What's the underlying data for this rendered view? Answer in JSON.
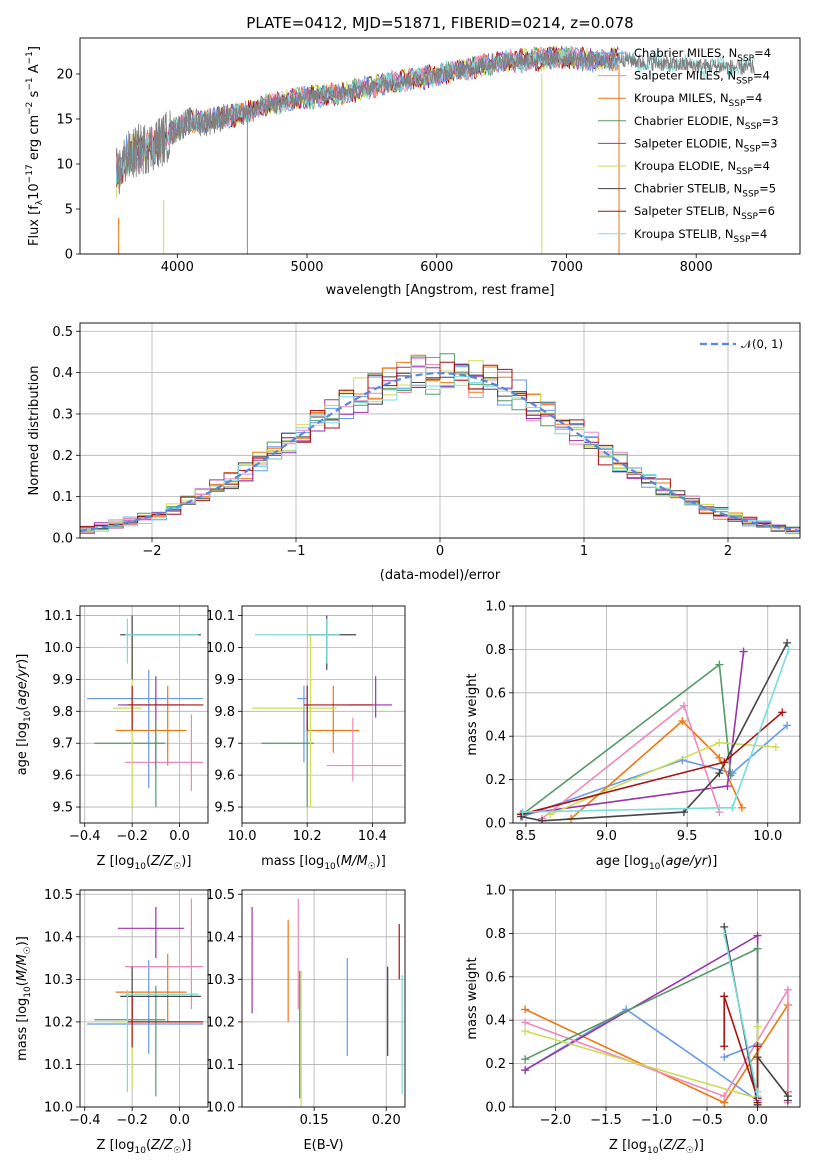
{
  "figure_title": "PLATE=0412, MJD=51871, FIBERID=0214, z=0.078",
  "colors": [
    "#6699ee",
    "#ee7711",
    "#9933aa",
    "#ee88bb",
    "#559966",
    "#ccdd55",
    "#444444",
    "#aa1111",
    "#77dddd"
  ],
  "chart_data": [
    {
      "type": "line",
      "xlabel": "wavelength [Angstrom, rest frame]",
      "ylabel": "Flux [fλ10^{-17} erg cm^{-2} s^{-1} A^{-1}]",
      "xlim": [
        3250,
        8800
      ],
      "ylim": [
        0,
        24
      ],
      "xticks": [
        "4000",
        "5000",
        "6000",
        "7000",
        "8000"
      ],
      "yticks": [
        "0",
        "5",
        "10",
        "15",
        "20"
      ],
      "legend_position": "upper right",
      "data_envelope": {
        "x": [
          3550,
          3600,
          3700,
          3800,
          3900,
          4000,
          4100,
          4200,
          4300,
          4500,
          4700,
          4900,
          5100,
          5300,
          5500,
          5700,
          5900,
          6100,
          6300,
          6500,
          6700,
          6900,
          7100,
          7300,
          7400,
          7600,
          7800,
          8000,
          8200,
          8400
        ],
        "y": [
          9.0,
          10.5,
          11.5,
          12.0,
          12.8,
          14.0,
          14.8,
          14.6,
          15.0,
          15.6,
          16.6,
          17.2,
          17.6,
          17.9,
          18.6,
          19.2,
          19.6,
          20.2,
          20.8,
          21.5,
          21.5,
          21.8,
          21.7,
          21.4,
          21.8,
          21.3,
          21.1,
          20.9,
          20.8,
          20.7
        ]
      },
      "series": [
        {
          "name": "Chabrier MILES, N_SSP=4",
          "color": "#6699ee"
        },
        {
          "name": "Salpeter MILES, N_SSP=4",
          "color": "#ee88bb"
        },
        {
          "name": "Kroupa MILES, N_SSP=4",
          "color": "#ee7711"
        },
        {
          "name": "Chabrier ELODIE, N_SSP=3",
          "color": "#559966"
        },
        {
          "name": "Salpeter ELODIE, N_SSP=3",
          "color": "#9933aa"
        },
        {
          "name": "Kroupa ELODIE, N_SSP=4",
          "color": "#ccdd55"
        },
        {
          "name": "Chabrier STELIB, N_SSP=5",
          "color": "#444444"
        },
        {
          "name": "Salpeter STELIB, N_SSP=6",
          "color": "#aa1111"
        },
        {
          "name": "Kroupa STELIB, N_SSP=4",
          "color": "#77dddd"
        }
      ]
    },
    {
      "type": "line",
      "xlabel": "(data-model)/error",
      "ylabel": "Normed distribution",
      "xlim": [
        -2.5,
        2.5
      ],
      "ylim": [
        0,
        0.52
      ],
      "xticks": [
        "−2",
        "−1",
        "0",
        "1",
        "2"
      ],
      "yticks": [
        "0.0",
        "0.1",
        "0.2",
        "0.3",
        "0.4",
        "0.5"
      ],
      "grid": true,
      "legend_position": "upper right",
      "reference": {
        "name": "𝒩(0, 1)",
        "color": "#5588dd",
        "style": "dashed"
      },
      "bin_width": 0.1,
      "bins_start": -2.5,
      "series_colors": [
        "#6699ee",
        "#ee88bb",
        "#ee7711",
        "#559966",
        "#9933aa",
        "#ccdd55",
        "#444444",
        "#aa1111",
        "#77dddd"
      ]
    },
    {
      "type": "scatter",
      "xlabel": "Z [log10(Z/Z☉)]",
      "ylabel": "age [log10(age/yr)]",
      "xlim": [
        -0.42,
        0.12
      ],
      "ylim": [
        9.45,
        10.13
      ],
      "xticks": [
        "−0.4",
        "−0.2",
        "0.0"
      ],
      "yticks": [
        "9.5",
        "9.6",
        "9.7",
        "9.8",
        "9.9",
        "10.0",
        "10.1"
      ],
      "grid": true,
      "points": [
        {
          "color": "#6699ee",
          "x": -0.13,
          "y": 9.84,
          "xerr": [
            0.26,
            0.23
          ],
          "yerr": [
            0.28,
            0.09
          ]
        },
        {
          "color": "#ee7711",
          "x": -0.05,
          "y": 9.74,
          "xerr": [
            0.22,
            0.08
          ],
          "yerr": [
            0.11,
            0.14
          ]
        },
        {
          "color": "#9933aa",
          "x": -0.1,
          "y": 9.82,
          "xerr": [
            0.16,
            0.12
          ],
          "yerr": [
            0.2,
            0.09
          ]
        },
        {
          "color": "#ee88bb",
          "x": 0.05,
          "y": 9.64,
          "xerr": [
            0.28,
            0.05
          ],
          "yerr": [
            0.09,
            0.15
          ]
        },
        {
          "color": "#559966",
          "x": -0.1,
          "y": 9.7,
          "xerr": [
            0.26,
            0.04
          ],
          "yerr": [
            0.2,
            0.07
          ]
        },
        {
          "color": "#ccdd55",
          "x": -0.2,
          "y": 9.81,
          "xerr": [
            0.08,
            0.04
          ],
          "yerr": [
            0.31,
            0.23
          ]
        },
        {
          "color": "#444444",
          "x": -0.2,
          "y": 10.04,
          "xerr": [
            0.05,
            0.29
          ],
          "yerr": [
            0.14,
            0.06
          ]
        },
        {
          "color": "#aa1111",
          "x": -0.2,
          "y": 9.82,
          "xerr": [
            0.02,
            0.3
          ],
          "yerr": [
            0.08,
            0.06
          ]
        },
        {
          "color": "#77dddd",
          "x": -0.22,
          "y": 10.04,
          "xerr": [
            0.01,
            0.3
          ],
          "yerr": [
            0.09,
            0.05
          ]
        }
      ]
    },
    {
      "type": "scatter",
      "xlabel": "mass [log10(M/M☉)]",
      "ylabel": "",
      "xlim": [
        10.0,
        10.5
      ],
      "ylim": [
        9.45,
        10.13
      ],
      "xticks": [
        "10.0",
        "10.2",
        "10.4"
      ],
      "yticks": [
        "9.5",
        "9.6",
        "9.7",
        "9.8",
        "9.9",
        "10.0",
        "10.1"
      ],
      "grid": true,
      "points": [
        {
          "color": "#6699ee",
          "x": 10.19,
          "y": 9.84,
          "xerr": [
            0.02,
            0.01
          ],
          "yerr": [
            0.2,
            0.04
          ]
        },
        {
          "color": "#ee7711",
          "x": 10.28,
          "y": 9.74,
          "xerr": [
            0.08,
            0.08
          ],
          "yerr": [
            0.07,
            0.14
          ]
        },
        {
          "color": "#9933aa",
          "x": 10.41,
          "y": 9.82,
          "xerr": [
            0.08,
            0.05
          ],
          "yerr": [
            0.04,
            0.09
          ]
        },
        {
          "color": "#ee88bb",
          "x": 10.34,
          "y": 9.63,
          "xerr": [
            0.08,
            0.15
          ],
          "yerr": [
            0.05,
            0.15
          ]
        },
        {
          "color": "#559966",
          "x": 10.2,
          "y": 9.7,
          "xerr": [
            0.14,
            0.02
          ],
          "yerr": [
            0.2,
            0.07
          ]
        },
        {
          "color": "#ccdd55",
          "x": 10.21,
          "y": 9.81,
          "xerr": [
            0.18,
            0.08
          ],
          "yerr": [
            0.31,
            0.23
          ]
        },
        {
          "color": "#444444",
          "x": 10.26,
          "y": 10.04,
          "xerr": [
            0.06,
            0.09
          ],
          "yerr": [
            0.11,
            0.06
          ]
        },
        {
          "color": "#aa1111",
          "x": 10.2,
          "y": 9.82,
          "xerr": [
            0.01,
            0.2
          ],
          "yerr": [
            0.08,
            0.06
          ]
        },
        {
          "color": "#77dddd",
          "x": 10.26,
          "y": 10.04,
          "xerr": [
            0.22,
            0.04
          ],
          "yerr": [
            0.09,
            0.05
          ]
        }
      ]
    },
    {
      "type": "line",
      "xlabel": "age [log10(age/yr)]",
      "ylabel": "mass weight",
      "xlim": [
        8.42,
        10.2
      ],
      "ylim": [
        0,
        1.0
      ],
      "xticks": [
        "8.5",
        "9.0",
        "9.5",
        "10.0"
      ],
      "yticks": [
        "0.0",
        "0.2",
        "0.4",
        "0.6",
        "0.8",
        "1.0"
      ],
      "grid": true,
      "series": [
        {
          "color": "#6699ee",
          "x": [
            8.48,
            9.47,
            9.78,
            10.12
          ],
          "y": [
            0.03,
            0.29,
            0.23,
            0.45
          ]
        },
        {
          "color": "#ee7711",
          "x": [
            8.78,
            9.47,
            9.7,
            9.84
          ],
          "y": [
            0.02,
            0.47,
            0.3,
            0.07
          ]
        },
        {
          "color": "#9933aa",
          "x": [
            8.47,
            9.75,
            9.85
          ],
          "y": [
            0.04,
            0.17,
            0.79
          ]
        },
        {
          "color": "#ee88bb",
          "x": [
            8.6,
            9.48,
            9.7
          ],
          "y": [
            0.02,
            0.54,
            0.05
          ]
        },
        {
          "color": "#559966",
          "x": [
            8.48,
            9.7,
            9.77
          ],
          "y": [
            0.04,
            0.73,
            0.22
          ]
        },
        {
          "color": "#ccdd55",
          "x": [
            8.65,
            9.7,
            10.05
          ],
          "y": [
            0.04,
            0.37,
            0.35
          ]
        },
        {
          "color": "#444444",
          "x": [
            8.47,
            8.6,
            9.48,
            9.7,
            10.12
          ],
          "y": [
            0.03,
            0.01,
            0.05,
            0.23,
            0.83
          ]
        },
        {
          "color": "#aa1111",
          "x": [
            8.47,
            9.73,
            10.09
          ],
          "y": [
            0.04,
            0.28,
            0.51
          ]
        },
        {
          "color": "#77dddd",
          "x": [
            8.48,
            9.7,
            9.78,
            10.13
          ],
          "y": [
            0.05,
            0.07,
            0.07,
            0.8
          ]
        }
      ]
    },
    {
      "type": "scatter",
      "xlabel": "Z [log10(Z/Z☉)]",
      "ylabel": "mass [log10(M/M☉)]",
      "xlim": [
        -0.42,
        0.12
      ],
      "ylim": [
        10.0,
        10.51
      ],
      "xticks": [
        "−0.4",
        "−0.2",
        "0.0"
      ],
      "yticks": [
        "10.0",
        "10.1",
        "10.2",
        "10.3",
        "10.4",
        "10.5"
      ],
      "grid": true,
      "points": [
        {
          "color": "#6699ee",
          "x": -0.13,
          "y": 10.195,
          "xerr": [
            0.26,
            0.23
          ],
          "yerr": [
            0.07,
            0.15
          ]
        },
        {
          "color": "#ee7711",
          "x": -0.05,
          "y": 10.27,
          "xerr": [
            0.22,
            0.08
          ],
          "yerr": [
            0.07,
            0.09
          ]
        },
        {
          "color": "#9933aa",
          "x": -0.1,
          "y": 10.42,
          "xerr": [
            0.16,
            0.12
          ],
          "yerr": [
            0.07,
            0.05
          ]
        },
        {
          "color": "#ee88bb",
          "x": 0.05,
          "y": 10.33,
          "xerr": [
            0.28,
            0.05
          ],
          "yerr": [
            0.1,
            0.16
          ]
        },
        {
          "color": "#559966",
          "x": -0.1,
          "y": 10.205,
          "xerr": [
            0.26,
            0.04
          ],
          "yerr": [
            0.18,
            0.08
          ]
        },
        {
          "color": "#ccdd55",
          "x": -0.2,
          "y": 10.2,
          "xerr": [
            0.08,
            0.04
          ],
          "yerr": [
            0.16,
            0.02
          ]
        },
        {
          "color": "#444444",
          "x": -0.2,
          "y": 10.26,
          "xerr": [
            0.05,
            0.29
          ],
          "yerr": [
            0.05,
            0.07
          ]
        },
        {
          "color": "#aa1111",
          "x": -0.2,
          "y": 10.2,
          "xerr": [
            0.02,
            0.3
          ],
          "yerr": [
            0.06,
            0.06
          ]
        },
        {
          "color": "#77dddd",
          "x": -0.22,
          "y": 10.265,
          "xerr": [
            0.01,
            0.3
          ],
          "yerr": [
            0.23,
            0.01
          ]
        }
      ]
    },
    {
      "type": "scatter",
      "xlabel": "E(B-V)",
      "ylabel": "",
      "xlim": [
        0.1,
        0.213
      ],
      "ylim": [
        10.0,
        10.51
      ],
      "xticks": [
        "0.15",
        "0.20"
      ],
      "yticks": [
        "10.0",
        "10.1",
        "10.2",
        "10.3",
        "10.4",
        "10.5"
      ],
      "grid": true,
      "points": [
        {
          "color": "#9933aa",
          "x": 0.107,
          "y": 10.345,
          "yerr": [
            0.125,
            0.125
          ]
        },
        {
          "color": "#ee7711",
          "x": 0.132,
          "y": 10.32,
          "yerr": [
            0.12,
            0.12
          ]
        },
        {
          "color": "#ee88bb",
          "x": 0.139,
          "y": 10.36,
          "yerr": [
            0.13,
            0.13
          ]
        },
        {
          "color": "#ccdd55",
          "x": 0.141,
          "y": 10.16,
          "yerr": [
            0.16,
            0.16
          ]
        },
        {
          "color": "#559966",
          "x": 0.14,
          "y": 10.17,
          "yerr": [
            0.15,
            0.15
          ]
        },
        {
          "color": "#6699ee",
          "x": 0.173,
          "y": 10.235,
          "yerr": [
            0.115,
            0.115
          ]
        },
        {
          "color": "#444444",
          "x": 0.201,
          "y": 10.225,
          "yerr": [
            0.105,
            0.105
          ]
        },
        {
          "color": "#aa1111",
          "x": 0.209,
          "y": 10.365,
          "yerr": [
            0.065,
            0.065
          ]
        },
        {
          "color": "#77dddd",
          "x": 0.211,
          "y": 10.17,
          "yerr": [
            0.14,
            0.14
          ]
        }
      ]
    },
    {
      "type": "line",
      "xlabel": "Z [log10(Z/Z☉)]",
      "ylabel": "mass weight",
      "xlim": [
        -2.42,
        0.42
      ],
      "ylim": [
        0,
        1.0
      ],
      "xticks": [
        "−2.0",
        "−1.5",
        "−1.0",
        "−0.5",
        "0.0"
      ],
      "yticks": [
        "0.0",
        "0.2",
        "0.4",
        "0.6",
        "0.8",
        "1.0"
      ],
      "grid": true,
      "series": [
        {
          "color": "#6699ee",
          "x": [
            -0.33,
            0.0,
            0.0,
            -1.3,
            -2.3
          ],
          "y": [
            0.23,
            0.29,
            0.03,
            0.45,
            0.17
          ]
        },
        {
          "color": "#ee7711",
          "x": [
            -2.3,
            -0.33,
            0.3,
            0.3
          ],
          "y": [
            0.45,
            0.02,
            0.47,
            0.07
          ]
        },
        {
          "color": "#9933aa",
          "x": [
            -2.3,
            0.0,
            0.0
          ],
          "y": [
            0.17,
            0.79,
            0.04
          ]
        },
        {
          "color": "#ee88bb",
          "x": [
            -2.3,
            -0.33,
            0.3,
            0.3
          ],
          "y": [
            0.39,
            0.05,
            0.54,
            0.02
          ]
        },
        {
          "color": "#559966",
          "x": [
            -2.3,
            0.0,
            0.0,
            0.0
          ],
          "y": [
            0.22,
            0.73,
            0.04,
            0.22
          ]
        },
        {
          "color": "#ccdd55",
          "x": [
            -2.3,
            0.0,
            0.0,
            0.0
          ],
          "y": [
            0.35,
            0.04,
            0.37,
            0.22
          ]
        },
        {
          "color": "#444444",
          "x": [
            -0.33,
            0.0,
            0.0,
            0.3,
            0.3
          ],
          "y": [
            0.83,
            0.01,
            0.23,
            0.05,
            0.03
          ]
        },
        {
          "color": "#aa1111",
          "x": [
            -0.33,
            -0.33,
            0.0,
            0.0,
            0.0
          ],
          "y": [
            0.28,
            0.51,
            0.04,
            0.28,
            0.02
          ]
        },
        {
          "color": "#77dddd",
          "x": [
            -0.33,
            0.0,
            0.0
          ],
          "y": [
            0.8,
            0.05,
            0.07
          ]
        }
      ]
    }
  ]
}
